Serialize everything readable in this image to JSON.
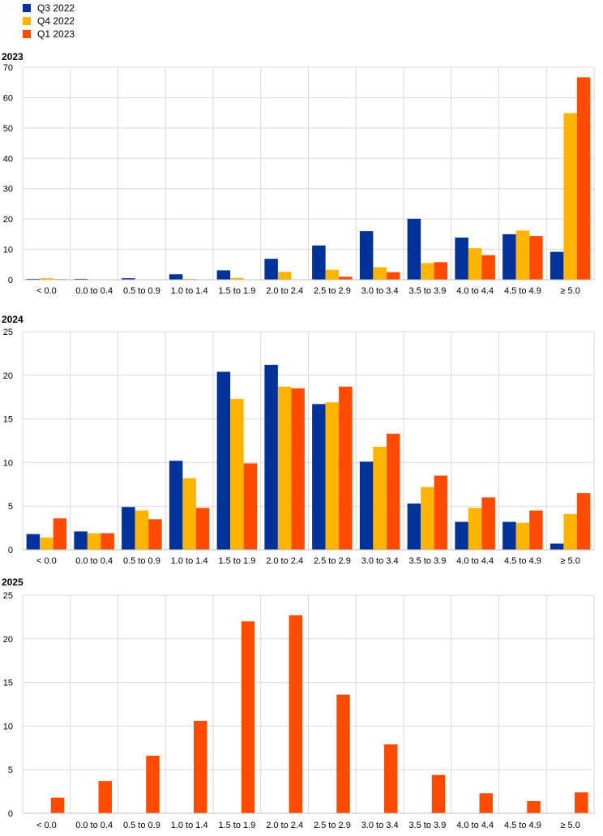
{
  "legend": [
    {
      "name": "Q3 2022",
      "color": "#003299"
    },
    {
      "name": "Q4 2022",
      "color": "#FFB400"
    },
    {
      "name": "Q1 2023",
      "color": "#FF4B00"
    }
  ],
  "chart_data": [
    {
      "type": "bar",
      "title": "2023",
      "categories": [
        "< 0.0",
        "0.0 to 0.4",
        "0.5 to 0.9",
        "1.0 to 1.4",
        "1.5 to 1.9",
        "2.0 to 2.4",
        "2.5 to 2.9",
        "3.0 to 3.4",
        "3.5 to 3.9",
        "4.0 to 4.4",
        "4.5 to 4.9",
        "≥ 5.0"
      ],
      "ylim": [
        0,
        70
      ],
      "yticks": [
        0,
        10,
        20,
        30,
        40,
        50,
        60,
        70
      ],
      "grid": true,
      "series": [
        {
          "name": "Q3 2022",
          "color": "#003299",
          "values": [
            0.3,
            0.3,
            0.5,
            1.8,
            3.1,
            6.9,
            11.3,
            16.0,
            20.1,
            13.9,
            15.0,
            9.2
          ]
        },
        {
          "name": "Q4 2022",
          "color": "#FFB400",
          "values": [
            0.5,
            0.0,
            0.1,
            0.3,
            0.6,
            2.6,
            3.3,
            4.1,
            5.5,
            10.4,
            16.2,
            54.9
          ]
        },
        {
          "name": "Q1 2023",
          "color": "#FF4B00",
          "values": [
            0.2,
            0.0,
            0.0,
            0.0,
            0.0,
            0.1,
            1.0,
            2.5,
            5.8,
            8.1,
            14.4,
            66.7
          ]
        }
      ]
    },
    {
      "type": "bar",
      "title": "2024",
      "categories": [
        "< 0.0",
        "0.0 to 0.4",
        "0.5 to 0.9",
        "1.0 to 1.4",
        "1.5 to 1.9",
        "2.0 to 2.4",
        "2.5 to 2.9",
        "3.0 to 3.4",
        "3.5 to 3.9",
        "4.0 to 4.4",
        "4.5 to 4.9",
        "≥ 5.0"
      ],
      "ylim": [
        0,
        25
      ],
      "yticks": [
        0,
        5,
        10,
        15,
        20,
        25
      ],
      "grid": true,
      "series": [
        {
          "name": "Q3 2022",
          "color": "#003299",
          "values": [
            1.8,
            2.1,
            4.9,
            10.2,
            20.4,
            21.2,
            16.7,
            10.1,
            5.3,
            3.2,
            3.2,
            0.7
          ]
        },
        {
          "name": "Q4 2022",
          "color": "#FFB400",
          "values": [
            1.4,
            1.9,
            4.5,
            8.2,
            17.3,
            18.7,
            16.9,
            11.8,
            7.2,
            4.8,
            3.1,
            4.1
          ]
        },
        {
          "name": "Q1 2023",
          "color": "#FF4B00",
          "values": [
            3.6,
            1.9,
            3.5,
            4.8,
            9.9,
            18.5,
            18.7,
            13.3,
            8.5,
            6.0,
            4.5,
            6.5
          ]
        }
      ]
    },
    {
      "type": "bar",
      "title": "2025",
      "categories": [
        "< 0.0",
        "0.0 to 0.4",
        "0.5 to 0.9",
        "1.0 to 1.4",
        "1.5 to 1.9",
        "2.0 to 2.4",
        "2.5 to 2.9",
        "3.0 to 3.4",
        "3.5 to 3.9",
        "4.0 to 4.4",
        "4.5 to 4.9",
        "≥ 5.0"
      ],
      "ylim": [
        0,
        25
      ],
      "yticks": [
        0,
        5,
        10,
        15,
        20,
        25
      ],
      "grid": true,
      "series": [
        {
          "name": "Q1 2023",
          "color": "#FF4B00",
          "values": [
            1.8,
            3.7,
            6.6,
            10.6,
            22.0,
            22.7,
            13.6,
            7.9,
            4.4,
            2.3,
            1.4,
            2.4
          ]
        }
      ]
    }
  ]
}
